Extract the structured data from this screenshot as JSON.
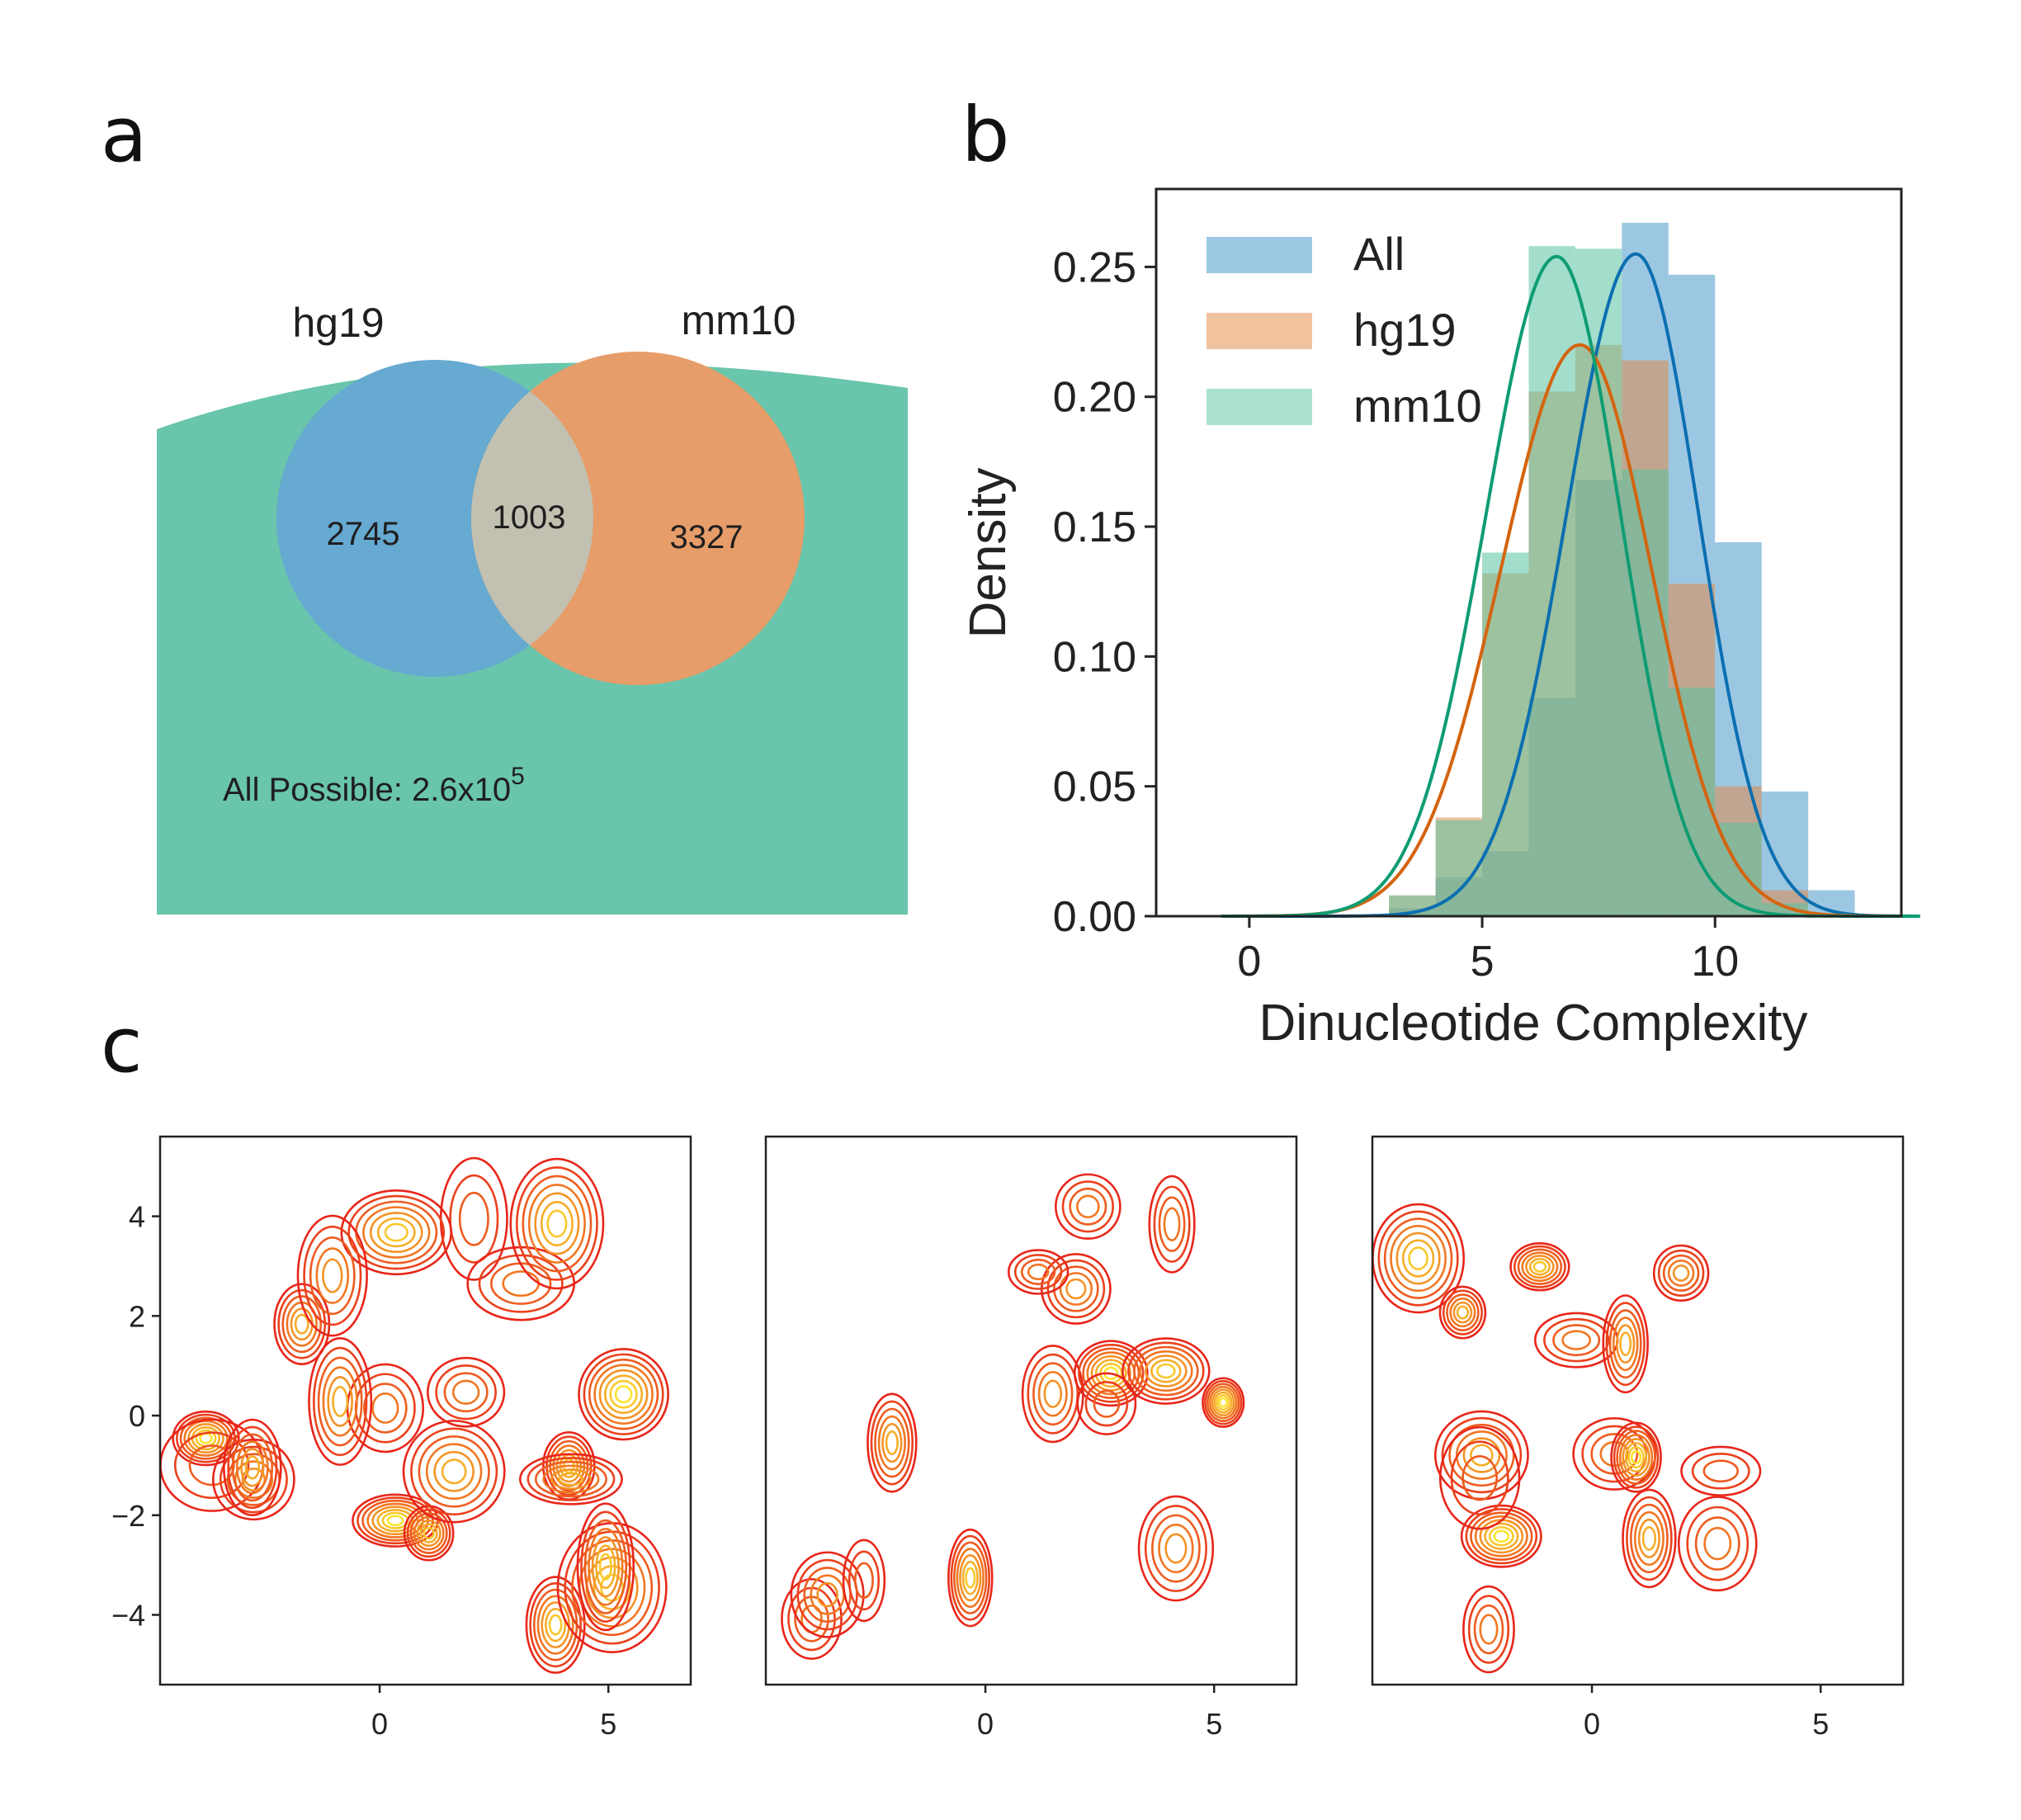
{
  "panel_letters": {
    "a": "a",
    "b": "b",
    "c": "c"
  },
  "colors": {
    "all": "#3a8fc6",
    "all_curve": "#0b6fb0",
    "hg19": "#e3863d",
    "hg19_curve": "#d4640f",
    "mm10": "#57c2a2",
    "mm10_curve": "#0e9c73",
    "venn_background": "#69c5ab",
    "venn_hg19": "#66a9d1",
    "venn_mm10": "#e69d69",
    "venn_overlap": "#c2c0b0",
    "contour_low": "#e8261a",
    "contour_high": "#ffff33"
  },
  "chart_data": [
    {
      "type": "venn",
      "sets": [
        {
          "name": "hg19",
          "only_count": "2745"
        },
        {
          "name": "mm10",
          "only_count": "3327"
        }
      ],
      "overlap_count": "1003",
      "universe_label": "All Possible: 2.6x10",
      "universe_exponent": "5"
    },
    {
      "type": "histogram",
      "xlabel": "Dinucleotide Complexity",
      "ylabel": "Density",
      "xlim": [
        -2,
        14
      ],
      "ylim": [
        0,
        0.28
      ],
      "xticks": [
        0,
        5,
        10
      ],
      "yticks": [
        "0.00",
        "0.05",
        "0.10",
        "0.15",
        "0.20",
        "0.25"
      ],
      "legend_position": "top-left",
      "bin_edges": [
        3,
        4,
        5,
        6,
        7,
        8,
        9,
        10,
        11,
        12,
        13
      ],
      "series": [
        {
          "name": "All",
          "key": "all",
          "hist": [
            0.003,
            0.015,
            0.025,
            0.084,
            0.168,
            0.267,
            0.247,
            0.144,
            0.048,
            0.01
          ],
          "kde_peak": {
            "x": 8.3,
            "y": 0.255
          }
        },
        {
          "name": "hg19",
          "key": "hg19",
          "hist": [
            0.008,
            0.038,
            0.132,
            0.202,
            0.22,
            0.214,
            0.128,
            0.05,
            0.01,
            0.0
          ],
          "kde_peak": {
            "x": 7.1,
            "y": 0.22
          }
        },
        {
          "name": "mm10",
          "key": "mm10",
          "hist": [
            0.008,
            0.037,
            0.14,
            0.258,
            0.257,
            0.172,
            0.088,
            0.036,
            0.005,
            0.0
          ],
          "kde_peak": {
            "x": 6.6,
            "y": 0.254
          }
        }
      ]
    },
    {
      "type": "contour",
      "panels": 3,
      "xlim": [
        -4.8,
        6.8
      ],
      "ylim": [
        -5.4,
        5.6
      ],
      "xticks": [
        "0",
        "5"
      ],
      "yticks": [
        "4",
        "2",
        "0",
        "−2",
        "−4"
      ]
    }
  ]
}
